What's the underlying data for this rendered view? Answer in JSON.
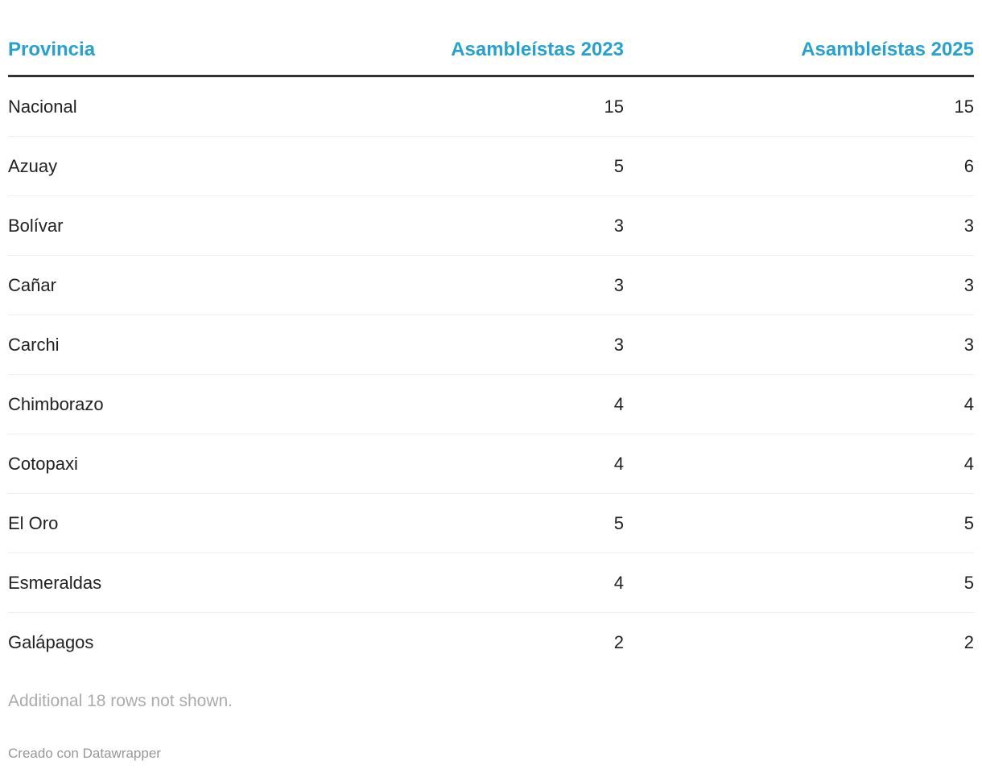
{
  "colors": {
    "header_text": "#25a1d3",
    "header_rule": "#333333",
    "row_divider": "#eeeeee",
    "body_text": "#222222",
    "note_text": "#ababab",
    "byline_text": "#979797",
    "page_bg": "#ffffff"
  },
  "chart_data": {
    "type": "table",
    "columns": [
      {
        "label": "Provincia",
        "align": "left"
      },
      {
        "label": "Asambleístas 2023",
        "align": "right"
      },
      {
        "label": "Asambleístas 2025",
        "align": "right"
      }
    ],
    "rows": [
      [
        "Nacional",
        15,
        15
      ],
      [
        "Azuay",
        5,
        6
      ],
      [
        "Bolívar",
        3,
        3
      ],
      [
        "Cañar",
        3,
        3
      ],
      [
        "Carchi",
        3,
        3
      ],
      [
        "Chimborazo",
        4,
        4
      ],
      [
        "Cotopaxi",
        4,
        4
      ],
      [
        "El Oro",
        5,
        5
      ],
      [
        "Esmeraldas",
        4,
        5
      ],
      [
        "Galápagos",
        2,
        2
      ]
    ],
    "note": "Additional 18 rows not shown.",
    "byline": "Creado con Datawrapper"
  }
}
